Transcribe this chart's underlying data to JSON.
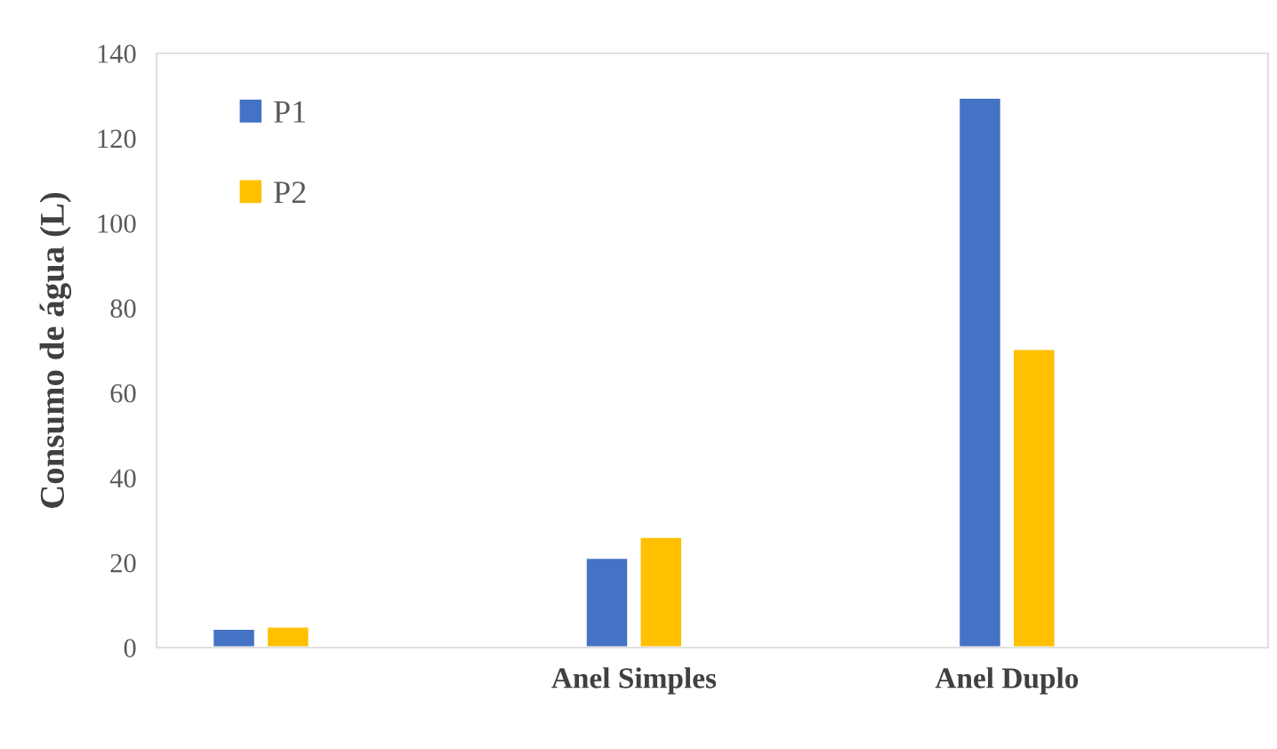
{
  "chart_data": {
    "type": "bar",
    "ylabel": "Consumo de água (L)",
    "categories": [
      null,
      "Anel Simples",
      "Anel Duplo"
    ],
    "series": [
      {
        "name": "P1",
        "color": "#4472c4",
        "values": [
          4.5,
          21.2,
          129.6
        ]
      },
      {
        "name": "P2",
        "color": "#ffc000",
        "values": [
          5.0,
          26.1,
          70.4
        ]
      }
    ],
    "ylim": [
      0,
      140
    ],
    "yticks": [
      0,
      20,
      40,
      60,
      80,
      100,
      120,
      140
    ],
    "grid": false,
    "legend": "top left"
  }
}
